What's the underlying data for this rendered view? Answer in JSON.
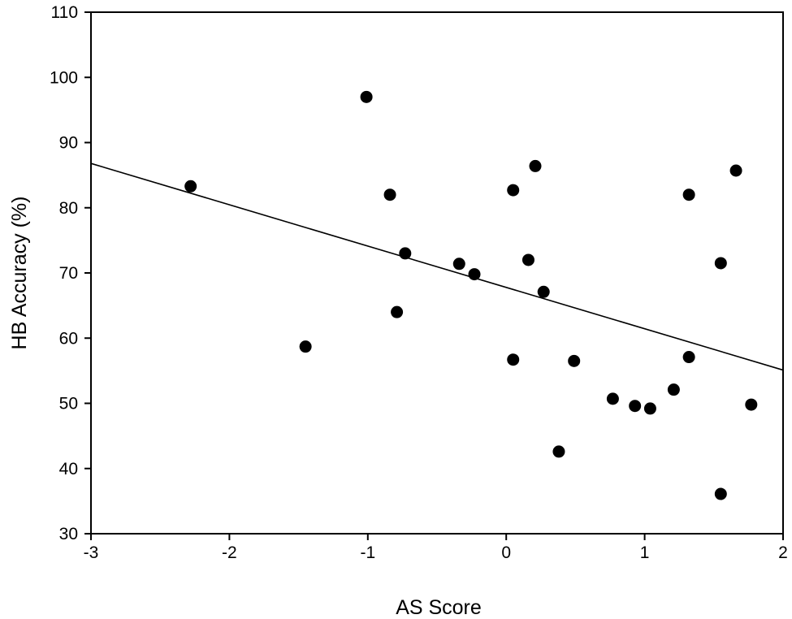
{
  "chart_data": {
    "type": "scatter",
    "title": "",
    "xlabel": "AS Score",
    "ylabel": "HB Accuracy (%)",
    "xlim": [
      -3,
      2
    ],
    "ylim": [
      30,
      110
    ],
    "xticks": [
      -3,
      -2,
      -1,
      0,
      1,
      2
    ],
    "yticks": [
      30,
      40,
      50,
      60,
      70,
      80,
      90,
      100,
      110
    ],
    "xtick_labels": [
      "-3",
      "-2",
      "-1",
      "0",
      "1",
      "2"
    ],
    "ytick_labels": [
      "30",
      "40",
      "50",
      "60",
      "70",
      "80",
      "90",
      "100",
      "110"
    ],
    "grid": false,
    "legend": "none",
    "marker_color": "#000000",
    "series": [
      {
        "points": [
          {
            "x": -2.28,
            "y": 83.3
          },
          {
            "x": -1.45,
            "y": 58.7
          },
          {
            "x": -1.01,
            "y": 97.0
          },
          {
            "x": -0.84,
            "y": 82.0
          },
          {
            "x": -0.79,
            "y": 64.0
          },
          {
            "x": -0.73,
            "y": 73.0
          },
          {
            "x": -0.34,
            "y": 71.4
          },
          {
            "x": -0.23,
            "y": 69.8
          },
          {
            "x": 0.05,
            "y": 82.7
          },
          {
            "x": 0.05,
            "y": 56.7
          },
          {
            "x": 0.16,
            "y": 72.0
          },
          {
            "x": 0.21,
            "y": 86.4
          },
          {
            "x": 0.27,
            "y": 67.1
          },
          {
            "x": 0.38,
            "y": 42.6
          },
          {
            "x": 0.49,
            "y": 56.5
          },
          {
            "x": 0.77,
            "y": 50.7
          },
          {
            "x": 0.93,
            "y": 49.6
          },
          {
            "x": 1.04,
            "y": 49.2
          },
          {
            "x": 1.21,
            "y": 52.1
          },
          {
            "x": 1.32,
            "y": 82.0
          },
          {
            "x": 1.32,
            "y": 57.1
          },
          {
            "x": 1.55,
            "y": 71.5
          },
          {
            "x": 1.55,
            "y": 36.1
          },
          {
            "x": 1.66,
            "y": 85.7
          },
          {
            "x": 1.77,
            "y": 49.8
          }
        ]
      }
    ],
    "trendline": {
      "type": "linear",
      "x": [
        -3,
        2
      ],
      "y": [
        86.8,
        55.1
      ]
    }
  }
}
